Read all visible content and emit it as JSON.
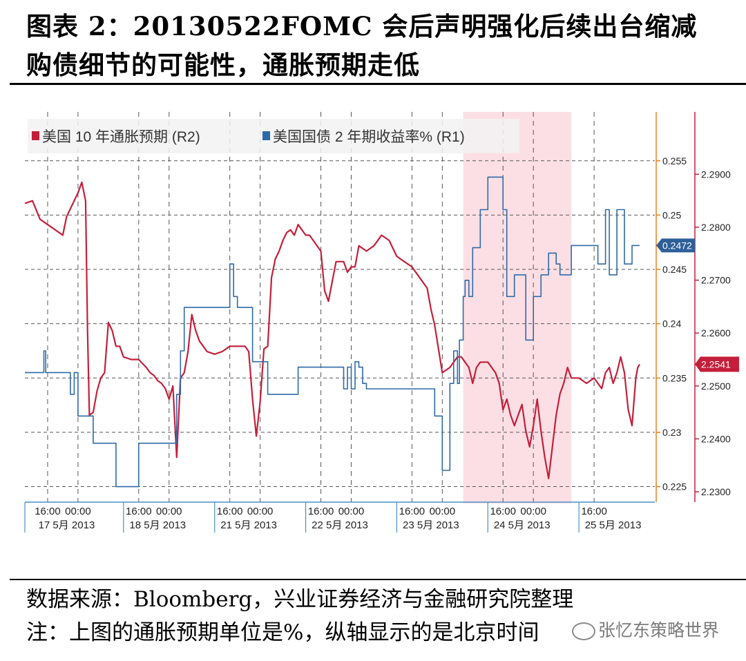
{
  "title": {
    "line1": "图表 2：20130522FOMC 会后声明强化后续出台缩减",
    "line2": "购债细节的可能性，通胀预期走低"
  },
  "footer": {
    "source": "数据来源：Bloomberg，兴业证券经济与金融研究院整理",
    "note": "注：上图的通胀预期单位是%，纵轴显示的是北京时间"
  },
  "watermark": "张忆东策略世界",
  "colors": {
    "red_series": "#c41e3a",
    "blue_series": "#2e6aa8",
    "highlight": "#fbd9df",
    "grid": "#555555"
  },
  "chart_data": {
    "type": "line",
    "legend": [
      {
        "label": "美国 10 年通胀预期 (R2)",
        "color": "#c41e3a"
      },
      {
        "label": "美国国债 2 年期收益率% (R1)",
        "color": "#2e6aa8"
      }
    ],
    "x_ticks": {
      "times": [
        "16:00",
        "00:00",
        "16:00",
        "00:00",
        "16:00",
        "00:00",
        "16:00",
        "00:00",
        "16:00",
        "00:00",
        "16:00",
        "00:00",
        "16:00"
      ],
      "time_pos": [
        -8,
        0,
        16,
        24,
        40,
        48,
        64,
        72,
        88,
        96,
        112,
        120,
        136
      ],
      "dates": [
        "17 5月 2013",
        "18 5月 2013",
        "21 5月 2013",
        "22 5月 2013",
        "23 5月 2013",
        "24 5月 2013",
        "25 5月 2013"
      ],
      "date_pos": [
        -3,
        21,
        45,
        69,
        93,
        117,
        141
      ]
    },
    "axis_r1": {
      "ticks": [
        0.225,
        0.23,
        0.235,
        0.24,
        0.245,
        0.25,
        0.255
      ],
      "tick_labels": [
        "0.225",
        "0.23",
        "0.235",
        "0.24",
        "0.245",
        "0.25",
        "0.255"
      ],
      "ylim": [
        0.2237,
        0.2595
      ],
      "last_value_label": "0.2472",
      "last_value": 0.2472
    },
    "axis_r2": {
      "ticks": [
        2.23,
        2.24,
        2.25,
        2.26,
        2.27,
        2.28,
        2.29
      ],
      "tick_labels": [
        "2.2300",
        "2.2400",
        "2.2500",
        "2.2600",
        "2.2700",
        "2.2800",
        "2.2900"
      ],
      "ylim": [
        2.2283,
        2.3018
      ],
      "last_value_label": "2.2541",
      "last_value": 2.2541
    },
    "xlim": [
      -14,
      152
    ],
    "highlight_range": [
      101.5,
      130
    ],
    "series": [
      {
        "name": "美国 10 年通胀预期 (R2)",
        "axis": "r2",
        "x": [
          -14,
          -12,
          -10,
          -9,
          -8,
          -6,
          -4,
          -3,
          -2,
          0,
          1,
          2,
          2.5,
          3,
          4,
          5,
          6,
          7,
          8,
          9,
          10,
          11,
          12,
          14,
          16,
          18,
          19,
          20,
          21,
          22,
          23,
          24,
          25,
          26,
          27,
          28,
          29,
          30,
          31,
          32,
          33,
          34,
          36,
          38,
          40,
          42,
          44,
          45,
          46,
          47,
          48,
          49,
          50,
          51,
          52,
          53,
          54,
          55,
          56,
          57,
          58,
          59,
          60,
          61,
          62,
          64,
          65,
          66,
          68,
          70,
          71,
          72,
          73,
          74,
          76,
          78,
          80,
          82,
          84,
          86,
          88,
          90,
          92,
          93,
          94,
          96,
          98,
          100,
          101,
          102,
          103,
          104,
          105,
          106,
          108,
          110,
          111,
          112,
          113,
          114,
          115,
          116,
          117,
          118,
          119,
          120,
          121,
          122,
          123,
          124,
          125,
          126,
          127,
          128,
          129,
          130,
          132,
          134,
          136,
          138,
          139,
          140,
          141,
          142,
          143,
          144,
          145,
          146,
          147,
          147.5,
          148
        ],
        "values": [
          2.2845,
          2.285,
          2.2815,
          2.281,
          2.2805,
          2.2795,
          2.2785,
          2.282,
          2.2835,
          2.2865,
          2.2885,
          2.285,
          2.2605,
          2.2445,
          2.245,
          2.249,
          2.2515,
          2.2525,
          2.262,
          2.2605,
          2.2575,
          2.2575,
          2.2555,
          2.255,
          2.255,
          2.2535,
          2.2525,
          2.252,
          2.251,
          2.2505,
          2.2495,
          2.2475,
          2.25,
          2.2365,
          2.2515,
          2.2525,
          2.2565,
          2.2635,
          2.2605,
          2.2585,
          2.2575,
          2.2565,
          2.256,
          2.2565,
          2.2575,
          2.2575,
          2.2575,
          2.2565,
          2.2475,
          2.2405,
          2.247,
          2.257,
          2.2575,
          2.2705,
          2.274,
          2.2755,
          2.2775,
          2.279,
          2.2795,
          2.2785,
          2.2805,
          2.2795,
          2.2785,
          2.2785,
          2.2775,
          2.2755,
          2.268,
          2.266,
          2.2735,
          2.2735,
          2.2715,
          2.2725,
          2.2725,
          2.2765,
          2.2755,
          2.2765,
          2.2785,
          2.2775,
          2.2745,
          2.2735,
          2.2725,
          2.2705,
          2.2685,
          2.2645,
          2.2615,
          2.2525,
          2.2535,
          2.2555,
          2.2555,
          2.2545,
          2.2535,
          2.2505,
          2.2535,
          2.2545,
          2.2545,
          2.2525,
          2.2505,
          2.2455,
          2.2475,
          2.2445,
          2.2425,
          2.2445,
          2.2465,
          2.2415,
          2.2385,
          2.2425,
          2.2475,
          2.2415,
          2.2365,
          2.2325,
          2.2385,
          2.2445,
          2.2485,
          2.2505,
          2.2535,
          2.2515,
          2.2515,
          2.2505,
          2.2515,
          2.2495,
          2.2525,
          2.2535,
          2.2505,
          2.2525,
          2.2555,
          2.2525,
          2.2455,
          2.2425,
          2.2515,
          2.2535,
          2.2541
        ]
      },
      {
        "name": "美国国债 2 年期收益率% (R1)",
        "axis": "r1",
        "x": [
          -14,
          -9,
          -9,
          -8.5,
          -8.5,
          -7,
          -7,
          -4,
          -4,
          -2,
          -2,
          -1,
          -1,
          0,
          0,
          4,
          4,
          6,
          6,
          10,
          10,
          16,
          16,
          26,
          26,
          27,
          27,
          28,
          28,
          40,
          40,
          41,
          41,
          42,
          42,
          46,
          46,
          48,
          48,
          50,
          50,
          58,
          58,
          68,
          68,
          70,
          70,
          71,
          71,
          72,
          72,
          73,
          73,
          74,
          74,
          75,
          75,
          76,
          76,
          88,
          88,
          94,
          94,
          96,
          96,
          98,
          98,
          99,
          99,
          100,
          100,
          100.5,
          100.5,
          101.5,
          101.5,
          102,
          102,
          103,
          103,
          104,
          104,
          106,
          106,
          108,
          108,
          112,
          112,
          113,
          113,
          115,
          115,
          118,
          118,
          120,
          120,
          122,
          122,
          124,
          124,
          126,
          126,
          127,
          127,
          130,
          130,
          136,
          136,
          137,
          137,
          138,
          138,
          139,
          139,
          140,
          140,
          142,
          142,
          144,
          144,
          146,
          146,
          148
        ],
        "values": [
          0.2355,
          0.2355,
          0.2375,
          0.2375,
          0.2355,
          0.2355,
          0.2355,
          0.2355,
          0.2355,
          0.2355,
          0.2335,
          0.2335,
          0.2355,
          0.2355,
          0.2315,
          0.2315,
          0.229,
          0.229,
          0.229,
          0.229,
          0.225,
          0.225,
          0.229,
          0.229,
          0.2335,
          0.2335,
          0.2375,
          0.2375,
          0.2415,
          0.2415,
          0.2455,
          0.2455,
          0.2425,
          0.2425,
          0.2415,
          0.2415,
          0.2365,
          0.2365,
          0.2365,
          0.2365,
          0.2335,
          0.2335,
          0.236,
          0.236,
          0.236,
          0.236,
          0.234,
          0.234,
          0.236,
          0.236,
          0.234,
          0.234,
          0.2365,
          0.2365,
          0.236,
          0.236,
          0.2345,
          0.2345,
          0.234,
          0.234,
          0.234,
          0.234,
          0.2315,
          0.2315,
          0.2265,
          0.2265,
          0.2345,
          0.2345,
          0.2375,
          0.2375,
          0.2345,
          0.2345,
          0.2385,
          0.2385,
          0.2425,
          0.2425,
          0.244,
          0.244,
          0.2425,
          0.2425,
          0.247,
          0.247,
          0.2505,
          0.2505,
          0.2535,
          0.2535,
          0.2505,
          0.2505,
          0.2425,
          0.2425,
          0.2445,
          0.2445,
          0.2385,
          0.2385,
          0.2425,
          0.2425,
          0.2445,
          0.2445,
          0.2465,
          0.2465,
          0.2455,
          0.2455,
          0.2445,
          0.2445,
          0.2472,
          0.2472,
          0.2472,
          0.2472,
          0.2455,
          0.2455,
          0.2455,
          0.2455,
          0.2505,
          0.2505,
          0.2445,
          0.2445,
          0.2505,
          0.2505,
          0.2455,
          0.2455,
          0.2472,
          0.2472
        ]
      }
    ]
  }
}
